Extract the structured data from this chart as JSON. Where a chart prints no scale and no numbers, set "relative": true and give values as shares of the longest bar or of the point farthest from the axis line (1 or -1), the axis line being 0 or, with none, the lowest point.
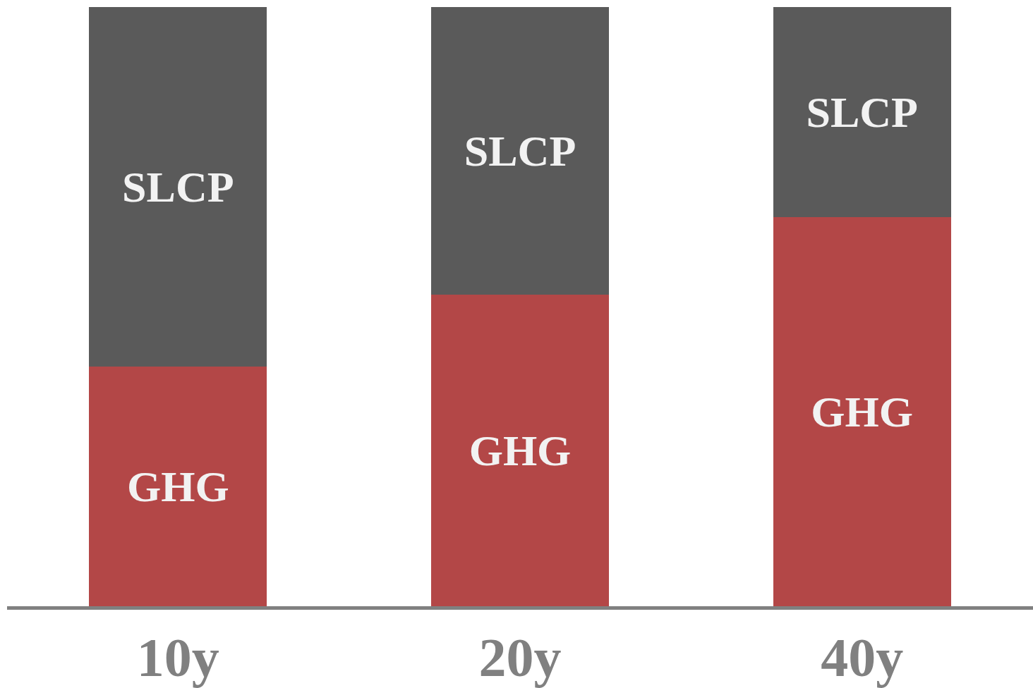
{
  "chart_data": {
    "type": "bar",
    "categories": [
      "10y",
      "20y",
      "40y"
    ],
    "stacked": true,
    "relative": true,
    "series": [
      {
        "name": "GHG",
        "color": "#b34747",
        "values": [
          0.4,
          0.52,
          0.65
        ]
      },
      {
        "name": "SLCP",
        "color": "#5a5a5a",
        "values": [
          0.6,
          0.48,
          0.35
        ]
      }
    ]
  }
}
